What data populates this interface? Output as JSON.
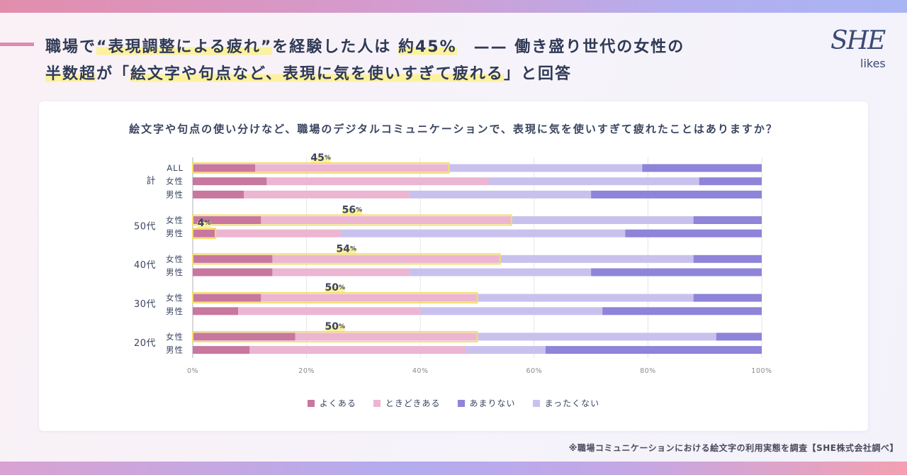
{
  "header": {
    "title_lines": [
      [
        {
          "text": "職場で",
          "highlight": false
        },
        {
          "text": "“表現調整による疲れ”",
          "highlight": true
        },
        {
          "text": "を経験した人は ",
          "highlight": false
        },
        {
          "text": "約45%",
          "highlight": true
        },
        {
          "text": "　—— 働き盛り世代の女性の",
          "highlight": false
        }
      ],
      [
        {
          "text": "半数超",
          "highlight": true
        },
        {
          "text": "が「",
          "highlight": false
        },
        {
          "text": "絵文字や句点など、表現に気を使いすぎて疲れる",
          "highlight": true
        },
        {
          "text": "」と回答",
          "highlight": false
        }
      ]
    ]
  },
  "logo": {
    "top": "SHE",
    "bottom": "likes"
  },
  "colors": {
    "accent_pink": "#dc8bb2",
    "marker_yellow": "#fcf19e",
    "highlight_box": "#f2de6b",
    "text_navy": "#2f3a56",
    "logo": "#3a4a73"
  },
  "chart_data": {
    "type": "bar",
    "orientation": "horizontal",
    "stacked": "percent",
    "title": "絵文字や句点の使い分けなど、職場のデジタルコミュニケーションで、表現に気を使いすぎて疲れたことはありますか？",
    "xlim": [
      0,
      100
    ],
    "x_ticks": [
      0,
      20,
      40,
      60,
      80,
      100
    ],
    "x_tick_labels": [
      "0%",
      "20%",
      "40%",
      "60%",
      "80%",
      "100%"
    ],
    "grid": true,
    "legend_position": "bottom",
    "legend": [
      "よくある",
      "ときどきある",
      "あまりない",
      "まったくない"
    ],
    "groups": [
      {
        "label": "計",
        "rows": [
          "ALL",
          "女性",
          "男性"
        ]
      },
      {
        "label": "50代",
        "rows": [
          "女性",
          "男性"
        ]
      },
      {
        "label": "40代",
        "rows": [
          "女性",
          "男性"
        ]
      },
      {
        "label": "30代",
        "rows": [
          "女性",
          "男性"
        ]
      },
      {
        "label": "20代",
        "rows": [
          "女性",
          "男性"
        ]
      }
    ],
    "series": [
      {
        "name": "よくある",
        "color": "#c8779f",
        "values": [
          11,
          13,
          9,
          12,
          4,
          14,
          14,
          12,
          8,
          18,
          10
        ]
      },
      {
        "name": "ときどきある",
        "color": "#ecb5d1",
        "values": [
          34,
          39,
          29,
          44,
          22,
          40,
          24,
          38,
          32,
          32,
          38
        ]
      },
      {
        "name": "まったくない",
        "color": "#c9c1ed",
        "values": [
          34,
          37,
          32,
          32,
          50,
          34,
          32,
          38,
          32,
          42,
          14
        ]
      },
      {
        "name": "あまりない",
        "color": "#8e84d9",
        "values": [
          21,
          11,
          30,
          12,
          24,
          12,
          30,
          12,
          28,
          8,
          38
        ]
      }
    ],
    "callouts": [
      "45%",
      null,
      null,
      "56%",
      "4%",
      "54%",
      null,
      "50%",
      null,
      "50%",
      null
    ]
  },
  "footer": {
    "note": "※職場コミュニケーションにおける絵文字の利用実態を調査【SHE株式会社調べ】"
  }
}
